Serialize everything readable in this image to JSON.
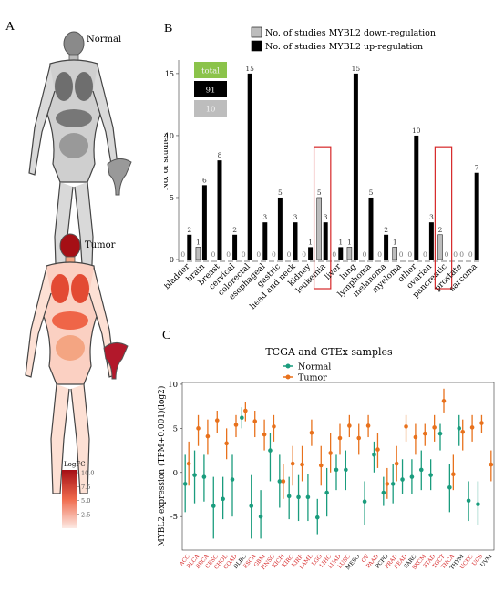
{
  "panels": {
    "a_label": "A",
    "b_label": "B",
    "c_label": "C"
  },
  "bodymap": {
    "normal_label": "Normal",
    "tumor_label": "Tumor",
    "legend_title": "LogFC",
    "legend_ticks": [
      "10.0",
      "7.5",
      "5.0",
      "2.5"
    ],
    "legend_values": [
      10.0,
      7.5,
      5.0,
      2.5
    ],
    "colors": {
      "normal": "#7a7a7a",
      "tumor_dark": "#b2182b",
      "tumor_light": "#fbe3dc"
    }
  },
  "chart_data": [
    {
      "type": "bar",
      "ylabel": "No. of studies",
      "ylim": [
        0,
        15.8
      ],
      "yticks": [
        0,
        5,
        10,
        15
      ],
      "legend": {
        "position": "top-right",
        "entries": [
          "No. of studies MYBL2 down-regulation",
          "No. of studies MYBL2 up-regulation"
        ]
      },
      "summary_boxes": [
        {
          "label": "total",
          "color": "#8bc34a"
        },
        {
          "label": "91",
          "color": "#000000"
        },
        {
          "label": "10",
          "color": "#bdbdbd"
        }
      ],
      "categories": [
        "bladder",
        "brain",
        "breast",
        "cervical",
        "colorectal",
        "esophageal",
        "gastric",
        "head and neck",
        "kidney",
        "leukemia",
        "liver",
        "lung",
        "lymphoma",
        "melanoma",
        "myeloma",
        "other",
        "ovarian",
        "pancreatic",
        "prostate",
        "sarcoma"
      ],
      "series": [
        {
          "name": "No. of studies MYBL2 down-regulation",
          "color": "#bdbdbd",
          "values": [
            0,
            1,
            0,
            0,
            0,
            0,
            0,
            0,
            0,
            5,
            0,
            1,
            0,
            0,
            1,
            0,
            0,
            2,
            0,
            0
          ]
        },
        {
          "name": "No. of studies MYBL2 up-regulation",
          "color": "#000000",
          "values": [
            2,
            6,
            8,
            2,
            15,
            3,
            5,
            3,
            1,
            3,
            1,
            15,
            5,
            2,
            0,
            10,
            3,
            0,
            0,
            7
          ]
        }
      ],
      "highlighted": [
        "leukemia",
        "pancreatic"
      ],
      "highlight_color": "#d62728"
    },
    {
      "type": "scatter",
      "title": "TCGA and GTEx samples",
      "ylabel": "MYBL2 expression (TPM+0.001)(log2)",
      "ylim": [
        -8.8,
        10.2
      ],
      "yticks": [
        -5,
        0,
        5,
        10
      ],
      "legend": {
        "position": "top",
        "entries": [
          "Normal",
          "Tumor"
        ]
      },
      "colors": {
        "normal": "#1a9c7d",
        "tumor": "#e8711c"
      },
      "categories": [
        "ACC",
        "BLCA",
        "BRCA",
        "CESC",
        "CHOL",
        "COAD",
        "DLBC",
        "ESCA",
        "GBM",
        "HNSC",
        "KICH",
        "KIRC",
        "KIRP",
        "LAML",
        "LGG",
        "LIHC",
        "LUAD",
        "LUSC",
        "MESO",
        "OV",
        "PAAD",
        "PCPG",
        "PRAD",
        "READ",
        "SARC",
        "SKCM",
        "STAD",
        "TGCT",
        "THCA",
        "THYM",
        "UCEC",
        "UCS",
        "UVM"
      ],
      "category_colors": [
        "#d62728",
        "#d62728",
        "#d62728",
        "#d62728",
        "#d62728",
        "#d62728",
        "#000000",
        "#d62728",
        "#d62728",
        "#d62728",
        "#d62728",
        "#d62728",
        "#d62728",
        "#d62728",
        "#d62728",
        "#d62728",
        "#d62728",
        "#d62728",
        "#000000",
        "#d62728",
        "#d62728",
        "#000000",
        "#d62728",
        "#d62728",
        "#000000",
        "#d62728",
        "#d62728",
        "#d62728",
        "#d62728",
        "#000000",
        "#d62728",
        "#d62728",
        "#000000"
      ],
      "normal": [
        [
          -1.3,
          -4.5,
          2.0
        ],
        [
          -0.3,
          -3.5,
          2.5
        ],
        [
          -0.5,
          -3.3,
          2.0
        ],
        [
          -3.8,
          -7.5,
          -0.5
        ],
        [
          -3.0,
          -5.3,
          -0.5
        ],
        [
          -0.8,
          -5.0,
          2.0
        ],
        [
          6.2,
          5.0,
          7.4
        ],
        [
          -3.8,
          -7.5,
          -0.3
        ],
        [
          -5.0,
          -7.5,
          -2.0
        ],
        [
          2.5,
          -1.0,
          4.5
        ],
        [
          -1.0,
          -4.0,
          2.0
        ],
        [
          -2.7,
          -5.3,
          -0.5
        ],
        [
          -2.8,
          -5.5,
          -0.3
        ],
        [
          -2.8,
          -5.5,
          -0.2
        ],
        [
          -5.1,
          -7.0,
          -3.0
        ],
        [
          -2.3,
          -5.0,
          0.5
        ],
        [
          0.3,
          -2.0,
          2.0
        ],
        [
          0.3,
          -2.0,
          2.5
        ],
        [
          null,
          null,
          null
        ],
        [
          -3.3,
          -6.0,
          -1.0
        ],
        [
          2.0,
          0.0,
          3.5
        ],
        [
          -2.3,
          -3.8,
          -0.5
        ],
        [
          -1.3,
          -3.5,
          1.0
        ],
        [
          -0.8,
          -2.5,
          1.5
        ],
        [
          -0.5,
          -2.5,
          1.5
        ],
        [
          0.3,
          -2.0,
          2.5
        ],
        [
          -0.3,
          -2.0,
          1.5
        ],
        [
          4.4,
          2.5,
          5.5
        ],
        [
          -1.7,
          -4.5,
          1.0
        ],
        [
          5.0,
          3.0,
          6.5
        ],
        [
          -3.2,
          -5.5,
          -1.0
        ],
        [
          -3.6,
          -6.0,
          -1.0
        ],
        [
          null,
          null,
          null
        ]
      ],
      "tumor": [
        [
          1.0,
          -1.5,
          3.5
        ],
        [
          5.0,
          3.0,
          6.5
        ],
        [
          4.1,
          2.0,
          6.0
        ],
        [
          5.9,
          4.5,
          7.0
        ],
        [
          3.3,
          1.5,
          5.0
        ],
        [
          5.4,
          4.0,
          6.5
        ],
        [
          7.0,
          5.8,
          8.0
        ],
        [
          5.8,
          4.0,
          7.0
        ],
        [
          4.3,
          2.5,
          6.0
        ],
        [
          5.2,
          3.5,
          6.5
        ],
        [
          -1.0,
          -3.0,
          1.0
        ],
        [
          1.0,
          -1.5,
          3.0
        ],
        [
          0.9,
          -1.0,
          3.0
        ],
        [
          4.5,
          3.0,
          6.0
        ],
        [
          0.8,
          -1.5,
          3.0
        ],
        [
          2.2,
          0.0,
          4.5
        ],
        [
          3.9,
          2.0,
          5.5
        ],
        [
          5.3,
          4.0,
          6.5
        ],
        [
          3.9,
          2.0,
          5.5
        ],
        [
          5.3,
          4.0,
          6.5
        ],
        [
          2.6,
          0.5,
          4.5
        ],
        [
          -1.3,
          -3.0,
          0.5
        ],
        [
          1.0,
          -1.0,
          3.0
        ],
        [
          5.2,
          3.5,
          6.5
        ],
        [
          4.0,
          2.0,
          5.5
        ],
        [
          4.4,
          3.0,
          5.5
        ],
        [
          5.1,
          3.5,
          6.5
        ],
        [
          8.1,
          6.8,
          9.5
        ],
        [
          -0.2,
          -2.0,
          2.0
        ],
        [
          4.6,
          2.5,
          6.0
        ],
        [
          5.1,
          3.5,
          6.5
        ],
        [
          5.6,
          4.5,
          6.5
        ],
        [
          0.9,
          -1.0,
          2.5
        ]
      ]
    }
  ]
}
